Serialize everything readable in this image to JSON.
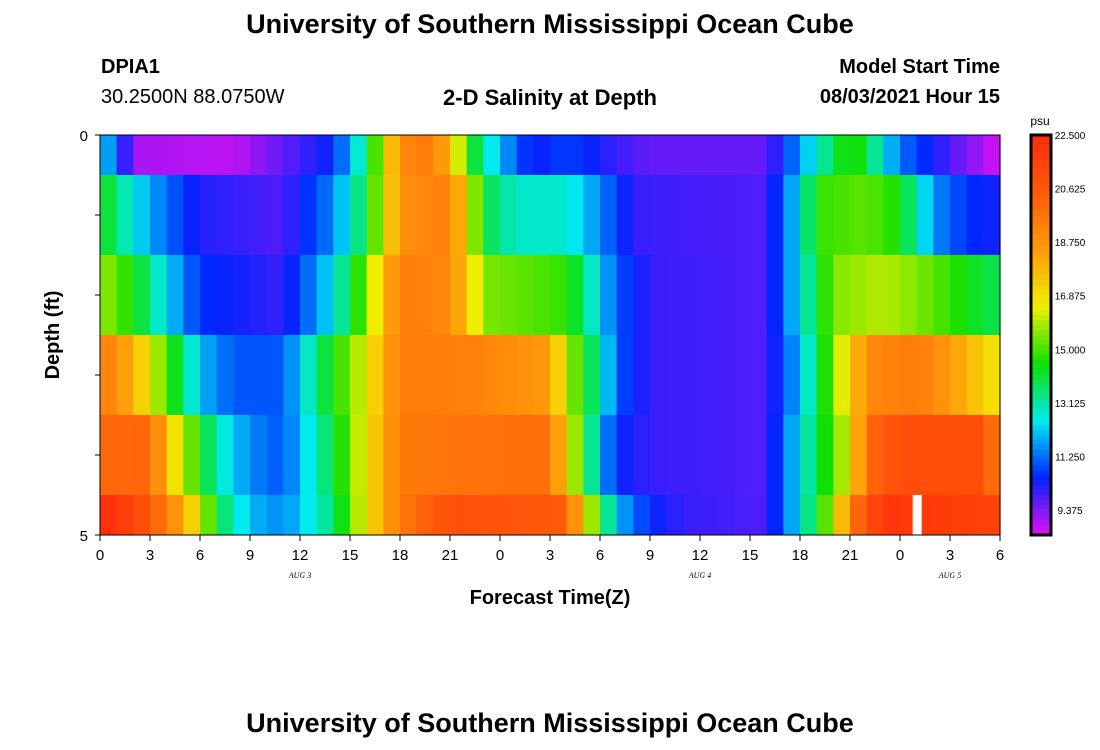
{
  "header": {
    "title": "University of Southern Mississippi Ocean Cube",
    "station_id": "DPIA1",
    "station_coords": "30.2500N  88.0750W",
    "plot_title": "2-D Salinity at Depth",
    "model_start_label": "Model Start Time",
    "model_start_value": "08/03/2021 Hour 15"
  },
  "footer": {
    "title": "University of Southern Mississippi Ocean Cube"
  },
  "colorbar": {
    "unit": "psu",
    "labels": [
      "22.500",
      "20.625",
      "18.750",
      "16.875",
      "15.000",
      "13.125",
      "11.250",
      "9.375"
    ],
    "colors": [
      "#ff2a0a",
      "#ff5a0a",
      "#ff9a0a",
      "#f0ee00",
      "#10e000",
      "#00eaf0",
      "#0024ff",
      "#e010f0"
    ]
  },
  "chart_data": {
    "type": "heatmap",
    "title": "2-D Salinity at Depth",
    "xlabel": "Forecast Time(Z)",
    "ylabel": "Depth (ft)",
    "x_ticks": [
      "0",
      "3",
      "6",
      "9",
      "12",
      "15",
      "18",
      "21",
      "0",
      "3",
      "6",
      "9",
      "12",
      "15",
      "18",
      "21",
      "0",
      "3",
      "6"
    ],
    "y_ticks": [
      "0",
      "5"
    ],
    "day_labels": [
      {
        "text": "AUG 3",
        "hour": 12
      },
      {
        "text": "AUG 4",
        "hour": 36
      },
      {
        "text": "AUG 5",
        "hour": 51
      }
    ],
    "hours_range": [
      0,
      54
    ],
    "vmin": 8.5,
    "vmax": 22.5,
    "depth_layers": [
      "0-0.5",
      "0.5-1.5",
      "1.5-2.5",
      "2.5-3.5",
      "3.5-4.5",
      "4.5-5"
    ],
    "rows": [
      {
        "depth": "0-0.5",
        "keys": [
          [
            0,
            12.5
          ],
          [
            1,
            11.0
          ],
          [
            2,
            9.0
          ],
          [
            8,
            8.8
          ],
          [
            14,
            10.5
          ],
          [
            16,
            13.5
          ],
          [
            17,
            16.5
          ],
          [
            18,
            19.0
          ],
          [
            20,
            19.5
          ],
          [
            21,
            17.5
          ],
          [
            22,
            15.0
          ],
          [
            23,
            13.0
          ],
          [
            25,
            11.0
          ],
          [
            26,
            10.3
          ],
          [
            28,
            10.8
          ],
          [
            31,
            10.0
          ],
          [
            33,
            9.6
          ],
          [
            40,
            9.6
          ],
          [
            41,
            10.6
          ],
          [
            43,
            12.8
          ],
          [
            45,
            14.8
          ],
          [
            46,
            14.0
          ],
          [
            47,
            12.5
          ],
          [
            48,
            11.3
          ],
          [
            51,
            9.8
          ],
          [
            53,
            9.0
          ],
          [
            54,
            8.5
          ]
        ]
      },
      {
        "depth": "0.5-1.5",
        "keys": [
          [
            0,
            14.5
          ],
          [
            2,
            12.5
          ],
          [
            4,
            11.2
          ],
          [
            6,
            10.2
          ],
          [
            11,
            9.8
          ],
          [
            14,
            11.5
          ],
          [
            16,
            14.0
          ],
          [
            17,
            16.5
          ],
          [
            18,
            18.8
          ],
          [
            21,
            19.3
          ],
          [
            22,
            17.0
          ],
          [
            23,
            14.0
          ],
          [
            25,
            12.8
          ],
          [
            28,
            12.8
          ],
          [
            30,
            11.5
          ],
          [
            32,
            10.0
          ],
          [
            40,
            9.8
          ],
          [
            42,
            12.5
          ],
          [
            43,
            14.8
          ],
          [
            46,
            15.2
          ],
          [
            48,
            14.5
          ],
          [
            49,
            13.0
          ],
          [
            50,
            11.6
          ],
          [
            52,
            10.6
          ],
          [
            54,
            10.3
          ]
        ]
      },
      {
        "depth": "1.5-2.5",
        "keys": [
          [
            0,
            15.8
          ],
          [
            2,
            14.5
          ],
          [
            4,
            12.3
          ],
          [
            6,
            10.6
          ],
          [
            11,
            10.0
          ],
          [
            14,
            12.5
          ],
          [
            16,
            15.5
          ],
          [
            17,
            17.5
          ],
          [
            18,
            19.5
          ],
          [
            21,
            19.0
          ],
          [
            22,
            17.5
          ],
          [
            23,
            15.5
          ],
          [
            28,
            14.8
          ],
          [
            29,
            13.5
          ],
          [
            31,
            11.0
          ],
          [
            33,
            10.0
          ],
          [
            40,
            9.8
          ],
          [
            42,
            12.5
          ],
          [
            44,
            15.5
          ],
          [
            47,
            16.0
          ],
          [
            49,
            15.5
          ],
          [
            51,
            14.8
          ],
          [
            53,
            14.0
          ],
          [
            54,
            13.8
          ]
        ]
      },
      {
        "depth": "2.5-3.5",
        "keys": [
          [
            0,
            19.5
          ],
          [
            2,
            18.0
          ],
          [
            4,
            15.0
          ],
          [
            6,
            12.0
          ],
          [
            8,
            11.0
          ],
          [
            11,
            11.0
          ],
          [
            13,
            13.5
          ],
          [
            16,
            16.5
          ],
          [
            18,
            19.5
          ],
          [
            22,
            19.3
          ],
          [
            27,
            18.5
          ],
          [
            28,
            16.0
          ],
          [
            29,
            14.5
          ],
          [
            30,
            13.0
          ],
          [
            31,
            11.0
          ],
          [
            33,
            10.0
          ],
          [
            40,
            9.8
          ],
          [
            42,
            12.0
          ],
          [
            44,
            15.5
          ],
          [
            46,
            19.0
          ],
          [
            49,
            19.5
          ],
          [
            51,
            18.5
          ],
          [
            53,
            17.2
          ],
          [
            54,
            16.5
          ]
        ]
      },
      {
        "depth": "3.5-4.5",
        "keys": [
          [
            0,
            20.0
          ],
          [
            3,
            20.2
          ],
          [
            4,
            17.5
          ],
          [
            6,
            14.5
          ],
          [
            7,
            13.0
          ],
          [
            9,
            11.5
          ],
          [
            11,
            11.0
          ],
          [
            14,
            14.0
          ],
          [
            16,
            16.8
          ],
          [
            18,
            19.5
          ],
          [
            24,
            19.8
          ],
          [
            27,
            19.8
          ],
          [
            28,
            17.0
          ],
          [
            29,
            14.5
          ],
          [
            30,
            12.0
          ],
          [
            31,
            10.5
          ],
          [
            33,
            10.0
          ],
          [
            40,
            9.8
          ],
          [
            42,
            12.5
          ],
          [
            45,
            16.5
          ],
          [
            46,
            20.0
          ],
          [
            48,
            21.0
          ],
          [
            53,
            21.0
          ],
          [
            54,
            19.0
          ]
        ]
      },
      {
        "depth": "4.5-5",
        "keys": [
          [
            0,
            22.5
          ],
          [
            2,
            21.5
          ],
          [
            4,
            19.5
          ],
          [
            6,
            16.5
          ],
          [
            7,
            14.0
          ],
          [
            9,
            12.0
          ],
          [
            11,
            11.5
          ],
          [
            14,
            13.5
          ],
          [
            16,
            16.8
          ],
          [
            18,
            19.5
          ],
          [
            21,
            21.0
          ],
          [
            28,
            20.5
          ],
          [
            29,
            17.0
          ],
          [
            30,
            14.5
          ],
          [
            31,
            12.0
          ],
          [
            33,
            10.5
          ],
          [
            35,
            10.0
          ],
          [
            40,
            9.8
          ],
          [
            42,
            12.5
          ],
          [
            44,
            16.0
          ],
          [
            45,
            19.5
          ],
          [
            47,
            22.0
          ],
          [
            54,
            21.5
          ]
        ]
      }
    ],
    "missing": {
      "hour": 49,
      "depth": "4.5-5"
    }
  }
}
